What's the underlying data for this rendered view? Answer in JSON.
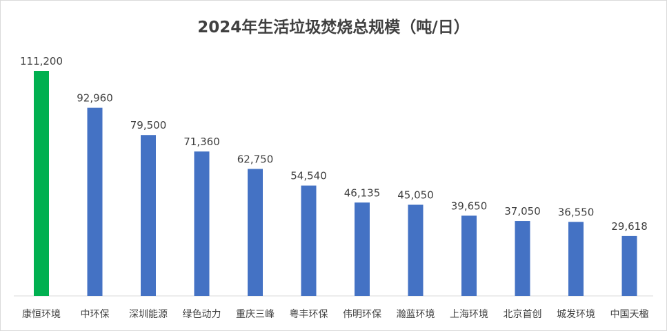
{
  "chart_data": {
    "type": "bar",
    "title": "2024年生活垃圾焚烧总规模（吨/日）",
    "categories": [
      "康恒环境",
      "中环保",
      "深圳能源",
      "绿色动力",
      "重庆三峰",
      "粤丰环保",
      "伟明环保",
      "瀚蓝环境",
      "上海环境",
      "北京首创",
      "城发环境",
      "中国天楹"
    ],
    "values": [
      111200,
      92960,
      79500,
      71360,
      62750,
      54540,
      46135,
      45050,
      39650,
      37050,
      36550,
      29618
    ],
    "data_labels": [
      "111,200",
      "92,960",
      "79,500",
      "71,360",
      "62,750",
      "54,540",
      "46,135",
      "45,050",
      "39,650",
      "37,050",
      "36,550",
      "29,618"
    ],
    "highlight_index": 0,
    "colors": {
      "highlight": "#00B050",
      "default": "#4472C4",
      "axis": "#d9d9d9",
      "text": "#404040"
    },
    "xlabel": "",
    "ylabel": "",
    "ylim": [
      0,
      111200
    ],
    "grid": false,
    "legend": "none"
  }
}
